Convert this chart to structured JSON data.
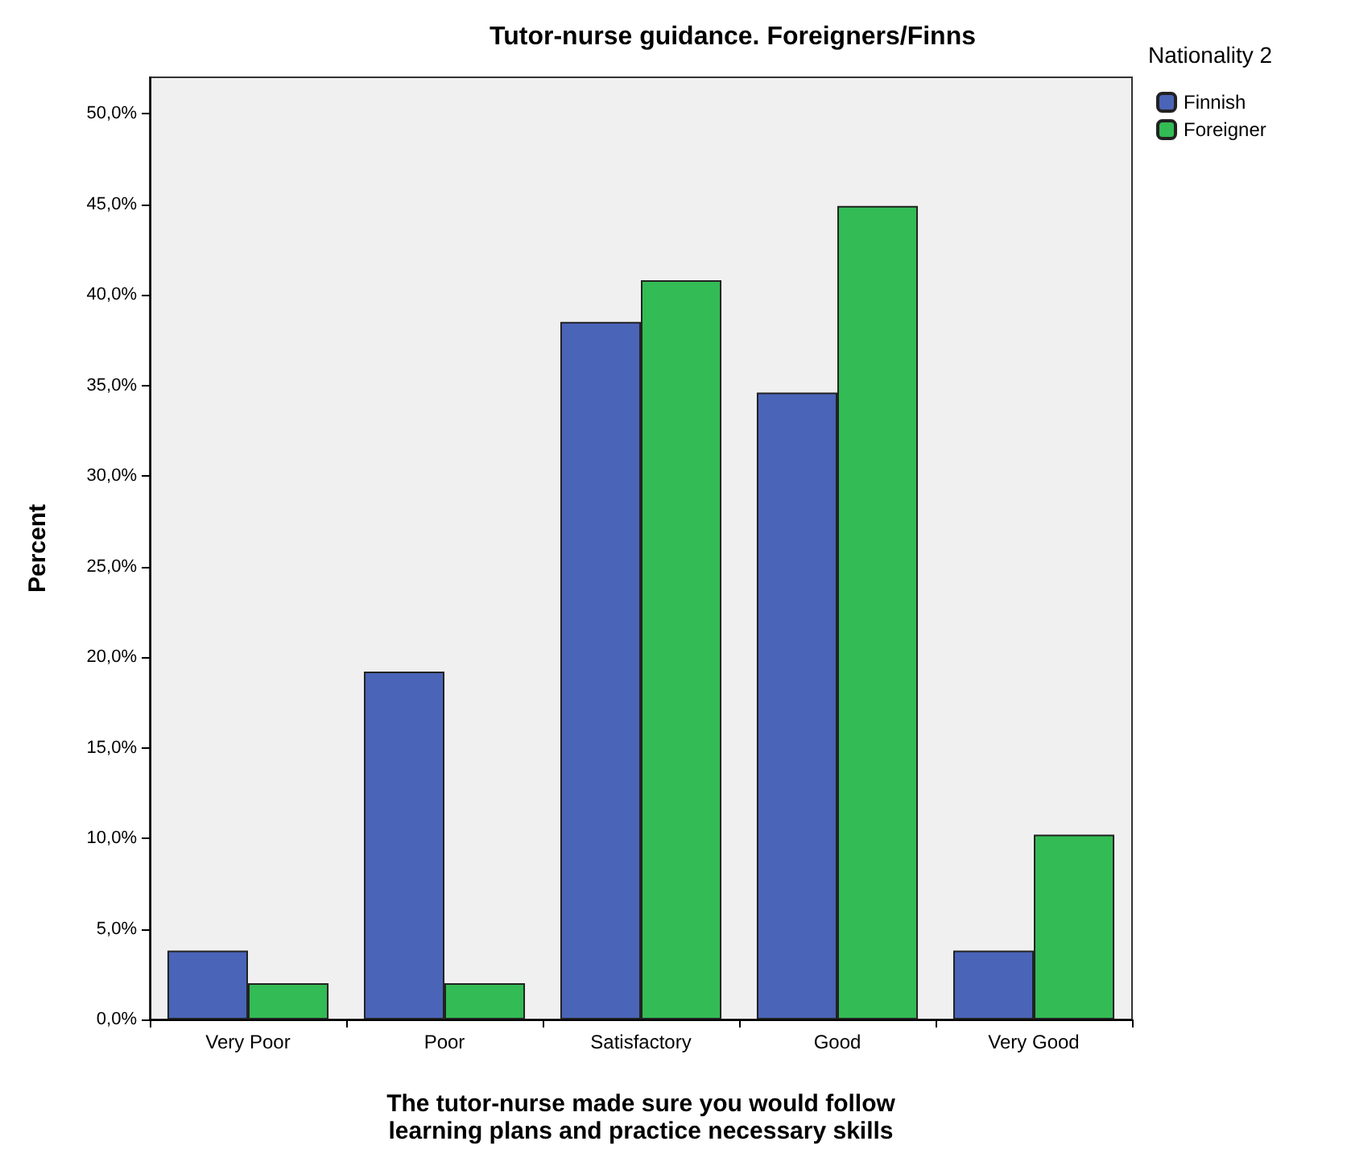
{
  "chart_data": {
    "type": "bar",
    "title": "Tutor-nurse guidance. Foreigners/Finns",
    "xlabel": "The tutor-nurse made sure you would follow\nlearning plans and practice necessary skills",
    "ylabel": "Percent",
    "legend_title": "Nationality 2",
    "legend": "top right",
    "grid": false,
    "categories": [
      "Very Poor",
      "Poor",
      "Satisfactory",
      "Good",
      "Very Good"
    ],
    "series": [
      {
        "name": "Finnish",
        "color": "#4a64b8",
        "values": [
          3.8,
          19.2,
          38.5,
          34.6,
          3.8
        ]
      },
      {
        "name": "Foreigner",
        "color": "#33bb55",
        "values": [
          2.0,
          2.0,
          40.8,
          44.9,
          10.2
        ]
      }
    ],
    "ylim": [
      0,
      52
    ],
    "yticks": [
      {
        "value": 0,
        "label": "0,0%"
      },
      {
        "value": 5,
        "label": "5,0%"
      },
      {
        "value": 10,
        "label": "10,0%"
      },
      {
        "value": 15,
        "label": "15,0%"
      },
      {
        "value": 20,
        "label": "20,0%"
      },
      {
        "value": 25,
        "label": "25,0%"
      },
      {
        "value": 30,
        "label": "30,0%"
      },
      {
        "value": 35,
        "label": "35,0%"
      },
      {
        "value": 40,
        "label": "40,0%"
      },
      {
        "value": 45,
        "label": "45,0%"
      },
      {
        "value": 50,
        "label": "50,0%"
      }
    ]
  }
}
